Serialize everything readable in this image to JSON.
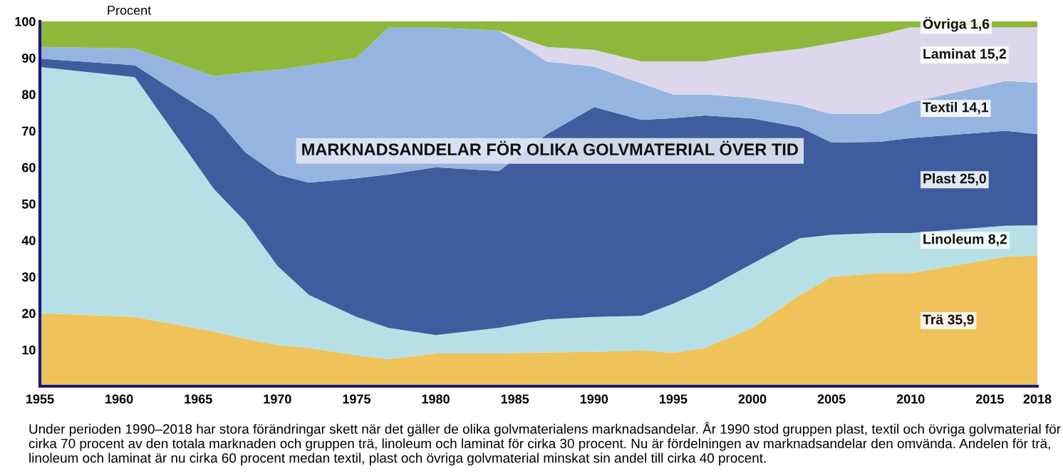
{
  "chart_data": {
    "type": "area",
    "stacked": true,
    "title": "MARKNADSANDELAR FÖR OLIKA GOLVMATERIAL ÖVER TID",
    "ylabel": "Procent",
    "x": [
      1955,
      1961,
      1966,
      1968,
      1970,
      1972,
      1975,
      1977,
      1980,
      1984,
      1987,
      1990,
      1993,
      1995,
      1997,
      2000,
      2003,
      2005,
      2008,
      2010,
      2016,
      2018
    ],
    "series": [
      {
        "name": "Trä 35,9",
        "color": "#efc35a",
        "values": [
          20,
          19,
          15,
          13,
          11.3,
          10.5,
          8.5,
          7.4,
          9,
          9,
          9.3,
          9.4,
          9.8,
          9.2,
          10.5,
          16,
          25,
          30,
          31,
          31,
          35.5,
          35.9
        ]
      },
      {
        "name": "Linoleum 8,2",
        "color": "#b6e0e6",
        "values": [
          67.5,
          65.7,
          39,
          32,
          21.7,
          14.5,
          10.5,
          8.6,
          5,
          7,
          9,
          9.6,
          9.5,
          13.4,
          16,
          17.6,
          15.6,
          11.5,
          11,
          11,
          8.5,
          8.2
        ]
      },
      {
        "name": "Plast 25,0",
        "color": "#3f5d9e",
        "values": [
          2.3,
          3.3,
          20,
          19,
          25,
          30.8,
          38,
          42,
          46,
          43,
          50.7,
          57.5,
          53.7,
          50.9,
          47.7,
          39.8,
          30.4,
          25.3,
          25,
          26,
          26,
          25.0
        ]
      },
      {
        "name": "Textil 14,1",
        "color": "#95b5e0",
        "values": [
          3.2,
          4.6,
          11,
          22,
          28.7,
          32.2,
          33,
          40.3,
          38.3,
          38.5,
          20,
          11.1,
          10,
          6.5,
          5.8,
          5.6,
          6,
          7.8,
          7.6,
          9.8,
          13.7,
          14.1
        ]
      },
      {
        "name": "Laminat 15,2",
        "color": "#ddd7ec",
        "values": [
          0,
          0,
          0,
          0,
          0,
          0,
          0,
          0,
          0,
          0,
          4,
          4.6,
          6,
          9,
          9,
          12,
          15.5,
          19.4,
          21.7,
          20.6,
          14.7,
          15.2
        ]
      },
      {
        "name": "Övriga 1,6",
        "color": "#8db83c",
        "values": [
          7,
          7.4,
          15,
          14,
          13.3,
          12,
          10,
          1.7,
          1.7,
          2.5,
          7,
          7.8,
          11,
          11,
          11,
          9,
          7.5,
          6,
          3.7,
          1.6,
          1.6,
          1.6
        ]
      }
    ],
    "xlim": [
      1955,
      2018
    ],
    "xticks": [
      1955,
      1960,
      1965,
      1970,
      1975,
      1980,
      1985,
      1990,
      1995,
      2000,
      2005,
      2010,
      2015,
      2018
    ],
    "ylim": [
      0,
      100
    ],
    "yticks": [
      10,
      20,
      30,
      40,
      50,
      60,
      70,
      80,
      90,
      100
    ],
    "grid": false,
    "legend": false,
    "annotations": [
      "Under perioden 1990–2018 har stora förändringar skett när det gäller de olika golvmaterialens marknadsandelar. År 1990 stod gruppen plast, textil och övriga golvmaterial för cirka 70 procent av den totala marknaden och gruppen trä, linoleum och laminat för cirka 30 procent. Nu är fördelningen av marknadsandelar den omvända. Andelen för trä, linoleum och laminat är nu cirka 60 procent medan textil, plast och övriga golvmaterial minskat sin andel till cirka 40 procent."
    ]
  }
}
